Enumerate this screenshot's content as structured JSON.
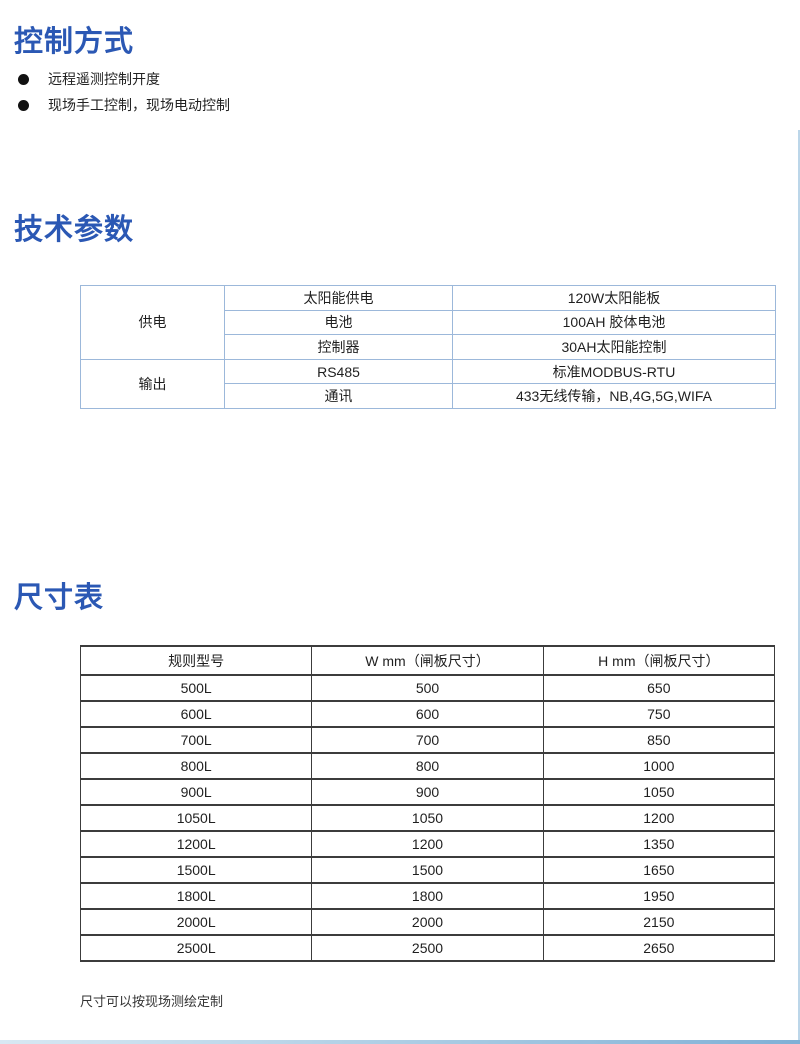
{
  "accent_color": "#2b58b4",
  "sections": {
    "control": {
      "title": "控制方式",
      "bullets": [
        "远程遥测控制开度",
        "现场手工控制，现场电动控制"
      ]
    },
    "tech": {
      "title": "技术参数",
      "table": {
        "groups": [
          {
            "label": "供电",
            "rows": [
              [
                "太阳能供电",
                "120W太阳能板"
              ],
              [
                "电池",
                "100AH 胶体电池"
              ],
              [
                "控制器",
                "30AH太阳能控制"
              ]
            ]
          },
          {
            "label": "输出",
            "rows": [
              [
                "RS485",
                "标准MODBUS-RTU"
              ],
              [
                "通讯",
                "433无线传输，NB,4G,5G,WIFA"
              ]
            ]
          }
        ]
      }
    },
    "size": {
      "title": "尺寸表",
      "table": {
        "headers": [
          "规则型号",
          "W mm（闸板尺寸）",
          "H mm（闸板尺寸）"
        ],
        "rows": [
          [
            "500L",
            "500",
            "650"
          ],
          [
            "600L",
            "600",
            "750"
          ],
          [
            "700L",
            "700",
            "850"
          ],
          [
            "800L",
            "800",
            "1000"
          ],
          [
            "900L",
            "900",
            "1050"
          ],
          [
            "1050L",
            "1050",
            "1200"
          ],
          [
            "1200L",
            "1200",
            "1350"
          ],
          [
            "1500L",
            "1500",
            "1650"
          ],
          [
            "1800L",
            "1800",
            "1950"
          ],
          [
            "2000L",
            "2000",
            "2150"
          ],
          [
            "2500L",
            "2500",
            "2650"
          ]
        ]
      },
      "note": "尺寸可以按现场测绘定制"
    }
  }
}
